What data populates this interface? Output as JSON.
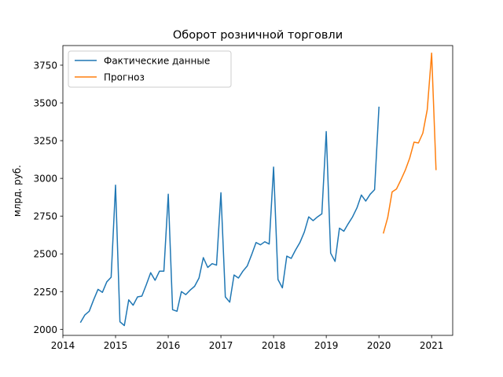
{
  "chart_data": {
    "type": "line",
    "title": "Оборот розничной торговли",
    "xlabel": "",
    "ylabel": "млрд. руб.",
    "xlim": [
      2014.0,
      2021.4
    ],
    "ylim": [
      1960,
      3880
    ],
    "x_ticks": [
      2014,
      2015,
      2016,
      2017,
      2018,
      2019,
      2020,
      2021
    ],
    "y_ticks": [
      2000,
      2250,
      2500,
      2750,
      3000,
      3250,
      3500,
      3750
    ],
    "grid": false,
    "legend_position": "upper-left",
    "series": [
      {
        "name": "Фактические данные",
        "color": "#1f77b4",
        "x": [
          "2014-05",
          "2014-06",
          "2014-07",
          "2014-08",
          "2014-09",
          "2014-10",
          "2014-11",
          "2014-12",
          "2015-01",
          "2015-02",
          "2015-03",
          "2015-04",
          "2015-05",
          "2015-06",
          "2015-07",
          "2015-08",
          "2015-09",
          "2015-10",
          "2015-11",
          "2015-12",
          "2016-01",
          "2016-02",
          "2016-03",
          "2016-04",
          "2016-05",
          "2016-06",
          "2016-07",
          "2016-08",
          "2016-09",
          "2016-10",
          "2016-11",
          "2016-12",
          "2017-01",
          "2017-02",
          "2017-03",
          "2017-04",
          "2017-05",
          "2017-06",
          "2017-07",
          "2017-08",
          "2017-09",
          "2017-10",
          "2017-11",
          "2017-12",
          "2018-01",
          "2018-02",
          "2018-03",
          "2018-04",
          "2018-05",
          "2018-06",
          "2018-07",
          "2018-08",
          "2018-09",
          "2018-10",
          "2018-11",
          "2018-12",
          "2019-01",
          "2019-02",
          "2019-03",
          "2019-04",
          "2019-05",
          "2019-06",
          "2019-07",
          "2019-08",
          "2019-09",
          "2019-10",
          "2019-11",
          "2019-12",
          "2020-01"
        ],
        "values": [
          2045,
          2095,
          2120,
          2195,
          2265,
          2245,
          2315,
          2345,
          2955,
          2050,
          2025,
          2195,
          2160,
          2215,
          2220,
          2295,
          2375,
          2325,
          2385,
          2385,
          2895,
          2130,
          2120,
          2250,
          2230,
          2260,
          2285,
          2340,
          2475,
          2410,
          2435,
          2425,
          2905,
          2215,
          2180,
          2360,
          2340,
          2385,
          2420,
          2495,
          2575,
          2560,
          2580,
          2565,
          3075,
          2330,
          2275,
          2485,
          2470,
          2525,
          2575,
          2645,
          2745,
          2720,
          2745,
          2765,
          3310,
          2505,
          2450,
          2670,
          2650,
          2700,
          2745,
          2805,
          2890,
          2850,
          2895,
          2925,
          3475
        ]
      },
      {
        "name": "Прогноз",
        "color": "#ff7f0e",
        "x": [
          "2020-02",
          "2020-03",
          "2020-04",
          "2020-05",
          "2020-06",
          "2020-07",
          "2020-08",
          "2020-09",
          "2020-10",
          "2020-11",
          "2020-12",
          "2021-01",
          "2021-02"
        ],
        "values": [
          2635,
          2740,
          2910,
          2930,
          2990,
          3055,
          3135,
          3240,
          3235,
          3300,
          3455,
          3830,
          3055
        ]
      }
    ]
  }
}
